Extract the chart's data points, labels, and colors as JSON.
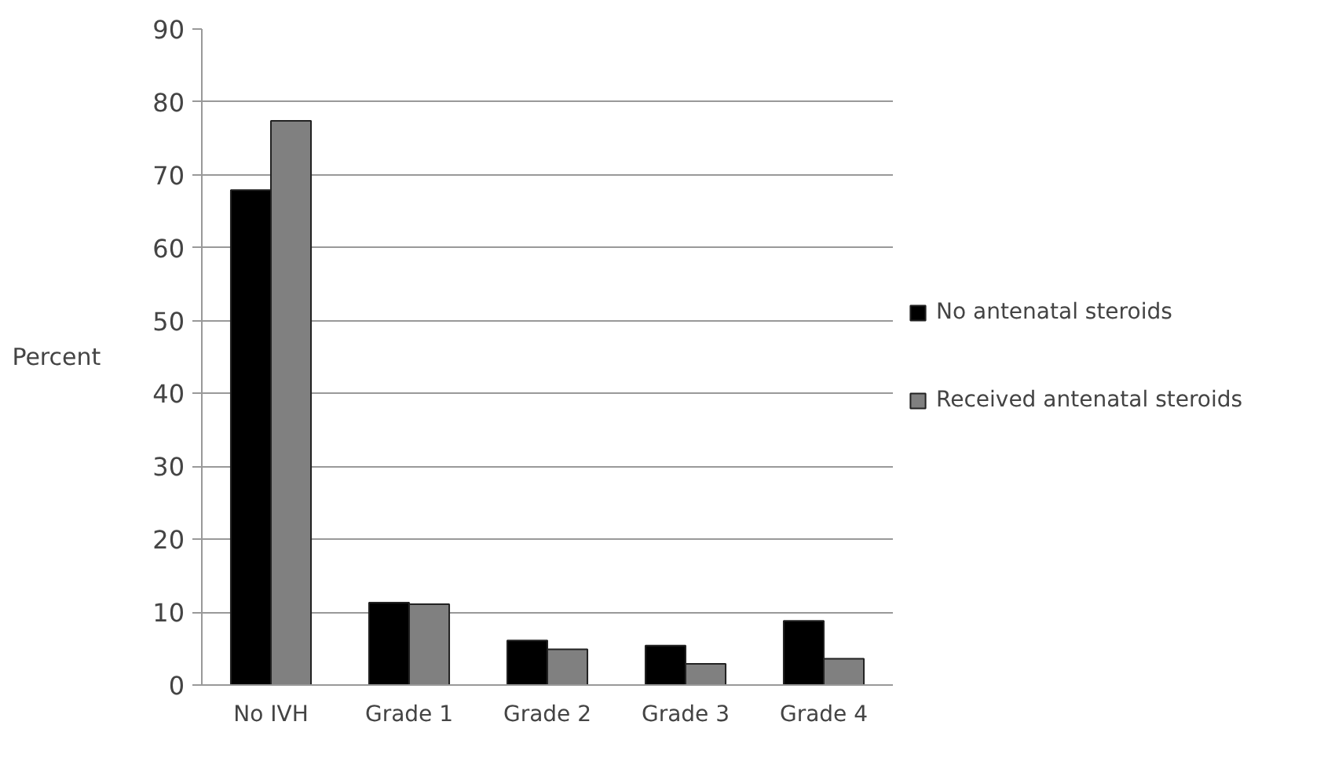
{
  "chart_data": {
    "type": "bar",
    "ylabel": "Percent",
    "categories": [
      "No IVH",
      "Grade 1",
      "Grade 2",
      "Grade 3",
      "Grade 4"
    ],
    "series": [
      {
        "name": "No antenatal steroids",
        "color": "#000000",
        "values": [
          67.9,
          11.3,
          6.1,
          5.4,
          8.8
        ]
      },
      {
        "name": "Received antenatal steroids",
        "color": "#808080",
        "values": [
          77.4,
          11.1,
          4.9,
          2.9,
          3.6
        ]
      }
    ],
    "ylim": [
      0,
      90
    ],
    "yticks": [
      0,
      10,
      20,
      30,
      40,
      50,
      60,
      70,
      80,
      90
    ],
    "grid": "y",
    "legend": "right"
  }
}
